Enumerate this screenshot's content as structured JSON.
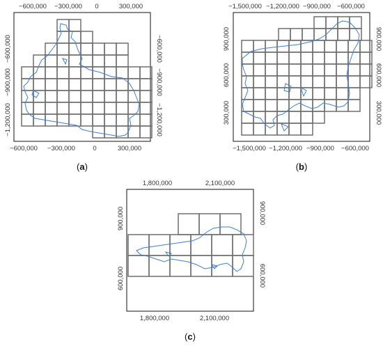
{
  "figure": {
    "background": "#ffffff",
    "colors": {
      "frame": "#111111",
      "grid": "#6f6f6f",
      "outline": "#3b7fd4",
      "text": "#333333"
    },
    "panels": [
      {
        "id": "a",
        "label": {
          "open": "(",
          "letter": "a",
          "close": ")"
        },
        "x_ticks": [
          "−600,000",
          "−300,000",
          "0",
          "300,000"
        ],
        "y_ticks": [
          "−600,000",
          "−900,000",
          "−1,200,000"
        ]
      },
      {
        "id": "b",
        "label": {
          "open": "(",
          "letter": "b",
          "close": ")"
        },
        "x_ticks": [
          "−1,500,000",
          "−1,200,000",
          "−900,000",
          "−600,000"
        ],
        "y_ticks": [
          "900,000",
          "600,000",
          "300,000"
        ]
      },
      {
        "id": "c",
        "label": {
          "open": "(",
          "letter": "c",
          "close": ")"
        },
        "x_ticks": [
          "1,800,000",
          "2,100,000"
        ],
        "y_ticks": [
          "900,000",
          "600,000"
        ]
      }
    ]
  }
}
